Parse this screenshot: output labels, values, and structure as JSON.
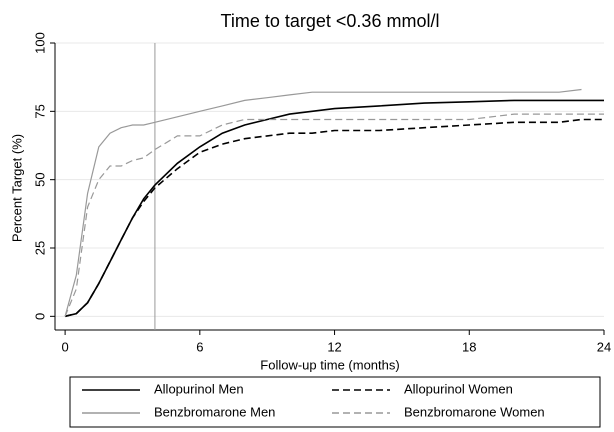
{
  "chart_data": {
    "type": "line",
    "title": "Time to target <0.36 mmol/l",
    "x_label": "Follow-up time (months)",
    "y_label": "Percent Target (%)",
    "x": [
      0,
      0.5,
      1,
      1.5,
      2,
      2.5,
      3,
      3.5,
      4,
      5,
      6,
      7,
      8,
      9,
      10,
      11,
      12,
      14,
      16,
      18,
      20,
      22,
      23,
      24
    ],
    "series": [
      {
        "name": "Allopurinol Men",
        "color": "#000000",
        "dashed": false,
        "values": [
          0,
          1,
          5,
          12,
          20,
          28,
          36,
          43,
          48,
          56,
          62,
          67,
          70,
          72,
          74,
          75,
          76,
          77,
          78,
          78.5,
          79,
          79,
          79,
          79
        ]
      },
      {
        "name": "Allopurinol Women",
        "color": "#000000",
        "dashed": true,
        "values": [
          0,
          1,
          5,
          12,
          20,
          28,
          36,
          42,
          47,
          54,
          60,
          63,
          65,
          66,
          67,
          67,
          68,
          68,
          69,
          70,
          71,
          71,
          72,
          72
        ]
      },
      {
        "name": "Benzbromarone Men",
        "color": "#999999",
        "dashed": false,
        "values": [
          0,
          15,
          45,
          62,
          67,
          69,
          70,
          70,
          71,
          73,
          75,
          77,
          79,
          80,
          81,
          82,
          82,
          82,
          82,
          82,
          82,
          82,
          83,
          null
        ]
      },
      {
        "name": "Benzbromarone Women",
        "color": "#999999",
        "dashed": true,
        "values": [
          0,
          10,
          40,
          50,
          55,
          55,
          57,
          58,
          61,
          66,
          66,
          70,
          72,
          72,
          72,
          72,
          72,
          72,
          72,
          72,
          74,
          74,
          74,
          74
        ]
      }
    ],
    "vline": 4,
    "xlim": [
      -0.45,
      24
    ],
    "ylim": [
      -5,
      100
    ],
    "xticks": [
      0,
      6,
      12,
      18,
      24
    ],
    "yticks": [
      0,
      25,
      50,
      75,
      100
    ],
    "grid": true
  }
}
